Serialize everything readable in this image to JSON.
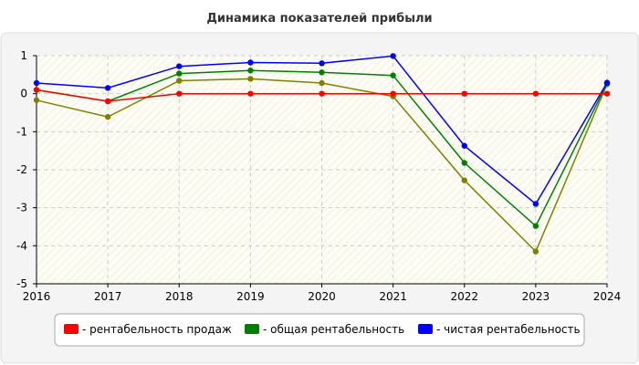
{
  "chart_data": {
    "type": "line",
    "title": "Динамика показателей прибыли",
    "xlabel": "",
    "ylabel": "",
    "categories": [
      "2016",
      "2017",
      "2018",
      "2019",
      "2020",
      "2021",
      "2022",
      "2023",
      "2024"
    ],
    "ylim": [
      -5,
      1
    ],
    "yticks": [
      1,
      0,
      -1,
      -2,
      -3,
      -4,
      -5
    ],
    "grid": true,
    "legend_position": "bottom",
    "series": [
      {
        "name": "рентабельность продаж",
        "color": "#ff0000",
        "values": [
          0.1,
          -0.2,
          0.0,
          0.0,
          0.0,
          0.0,
          0.0,
          0.0,
          0.0
        ]
      },
      {
        "name": "общая рентабельность",
        "color": "#008000",
        "values": [
          0.1,
          -0.2,
          0.53,
          0.61,
          0.56,
          0.48,
          -1.82,
          -3.48,
          0.27
        ]
      },
      {
        "name": "чистая рентабельность",
        "color": "#0000ff",
        "values": [
          0.28,
          0.15,
          0.72,
          0.82,
          0.8,
          0.99,
          -1.37,
          -2.9,
          0.29
        ]
      },
      {
        "color": "#808000",
        "values": [
          -0.17,
          -0.61,
          0.34,
          0.39,
          0.28,
          -0.07,
          -2.28,
          -4.15,
          0.25
        ]
      }
    ]
  }
}
